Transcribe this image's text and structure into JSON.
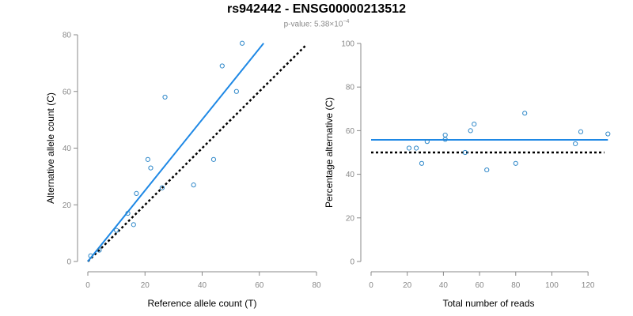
{
  "header": {
    "title": "rs942442 - ENSG00000213512",
    "subtitle_prefix": "p-value: 5.38×10",
    "subtitle_exponent": "−4"
  },
  "colors": {
    "points": "#2f88c9",
    "fit_line": "#1e88e5",
    "reference_line": "#000000",
    "axes": "#888888"
  },
  "chart_data": [
    {
      "type": "scatter",
      "name": "allele-counts",
      "xlabel": "Reference allele count (T)",
      "ylabel": "Alternative allele count (C)",
      "xlim": [
        0,
        80
      ],
      "ylim": [
        0,
        80
      ],
      "xticks": [
        0,
        20,
        40,
        60,
        80
      ],
      "yticks": [
        0,
        20,
        40,
        60,
        80
      ],
      "points": [
        {
          "x": 1,
          "y": 2
        },
        {
          "x": 4,
          "y": 4
        },
        {
          "x": 10,
          "y": 11
        },
        {
          "x": 14,
          "y": 17
        },
        {
          "x": 16,
          "y": 13
        },
        {
          "x": 17,
          "y": 24
        },
        {
          "x": 21,
          "y": 36
        },
        {
          "x": 22,
          "y": 33
        },
        {
          "x": 26,
          "y": 26
        },
        {
          "x": 27,
          "y": 58
        },
        {
          "x": 37,
          "y": 27
        },
        {
          "x": 44,
          "y": 36
        },
        {
          "x": 47,
          "y": 69
        },
        {
          "x": 52,
          "y": 60
        },
        {
          "x": 54,
          "y": 77
        }
      ],
      "fit_line": {
        "x": [
          0,
          61.5
        ],
        "y": [
          0,
          77
        ]
      },
      "reference_line": {
        "x": [
          0,
          76.5
        ],
        "y": [
          0,
          76.5
        ]
      }
    },
    {
      "type": "scatter",
      "name": "percentage-alternative",
      "xlabel": "Total number of reads",
      "ylabel": "Percentage alternative (C)",
      "xlim": [
        0,
        130
      ],
      "ylim": [
        0,
        100
      ],
      "xticks": [
        0,
        20,
        40,
        60,
        80,
        100,
        120
      ],
      "yticks": [
        0,
        20,
        40,
        60,
        80,
        100
      ],
      "points": [
        {
          "x": 21,
          "y": 52
        },
        {
          "x": 25,
          "y": 52
        },
        {
          "x": 28,
          "y": 45
        },
        {
          "x": 31,
          "y": 55
        },
        {
          "x": 41,
          "y": 56
        },
        {
          "x": 41,
          "y": 58
        },
        {
          "x": 52,
          "y": 50
        },
        {
          "x": 55,
          "y": 60
        },
        {
          "x": 57,
          "y": 63
        },
        {
          "x": 64,
          "y": 42
        },
        {
          "x": 80,
          "y": 45
        },
        {
          "x": 85,
          "y": 68
        },
        {
          "x": 113,
          "y": 54
        },
        {
          "x": 116,
          "y": 59.5
        },
        {
          "x": 131,
          "y": 58.5
        }
      ],
      "fit_line": {
        "x": [
          0,
          131
        ],
        "y": [
          55.8,
          55.8
        ]
      },
      "reference_line": {
        "x": [
          0,
          129
        ],
        "y": [
          50,
          50
        ]
      }
    }
  ]
}
